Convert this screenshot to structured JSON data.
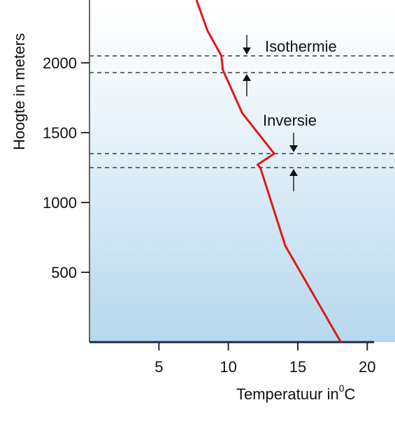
{
  "chart_data": {
    "type": "line",
    "xlabel": "Temperatuur in",
    "xlabel_unit_sup": "0",
    "xlabel_unit": "C",
    "ylabel": "Hoogte in meters",
    "xlim": [
      0,
      22
    ],
    "ylim": [
      0,
      2450
    ],
    "xticks": [
      "5",
      "10",
      "15",
      "20"
    ],
    "xtick_values": [
      5,
      10,
      15,
      20
    ],
    "yticks": [
      "500",
      "1000",
      "1500",
      "2000"
    ],
    "ytick_values": [
      500,
      1000,
      1500,
      2000
    ],
    "grid": false,
    "background": "gradient-light-blue",
    "line_color": "#e01818",
    "series": [
      {
        "x": [
          7.7,
          8.5,
          9.5,
          9.6,
          11.0,
          13.3,
          12.1,
          12.3,
          14.1,
          18.1
        ],
        "y": [
          2450,
          2230,
          2050,
          1950,
          1640,
          1350,
          1270,
          1250,
          690,
          0
        ]
      }
    ],
    "annotations": [
      {
        "text": "Isothermie",
        "layer": [
          1930,
          2050
        ]
      },
      {
        "text": "Inversie",
        "layer": [
          1250,
          1350
        ]
      }
    ]
  }
}
